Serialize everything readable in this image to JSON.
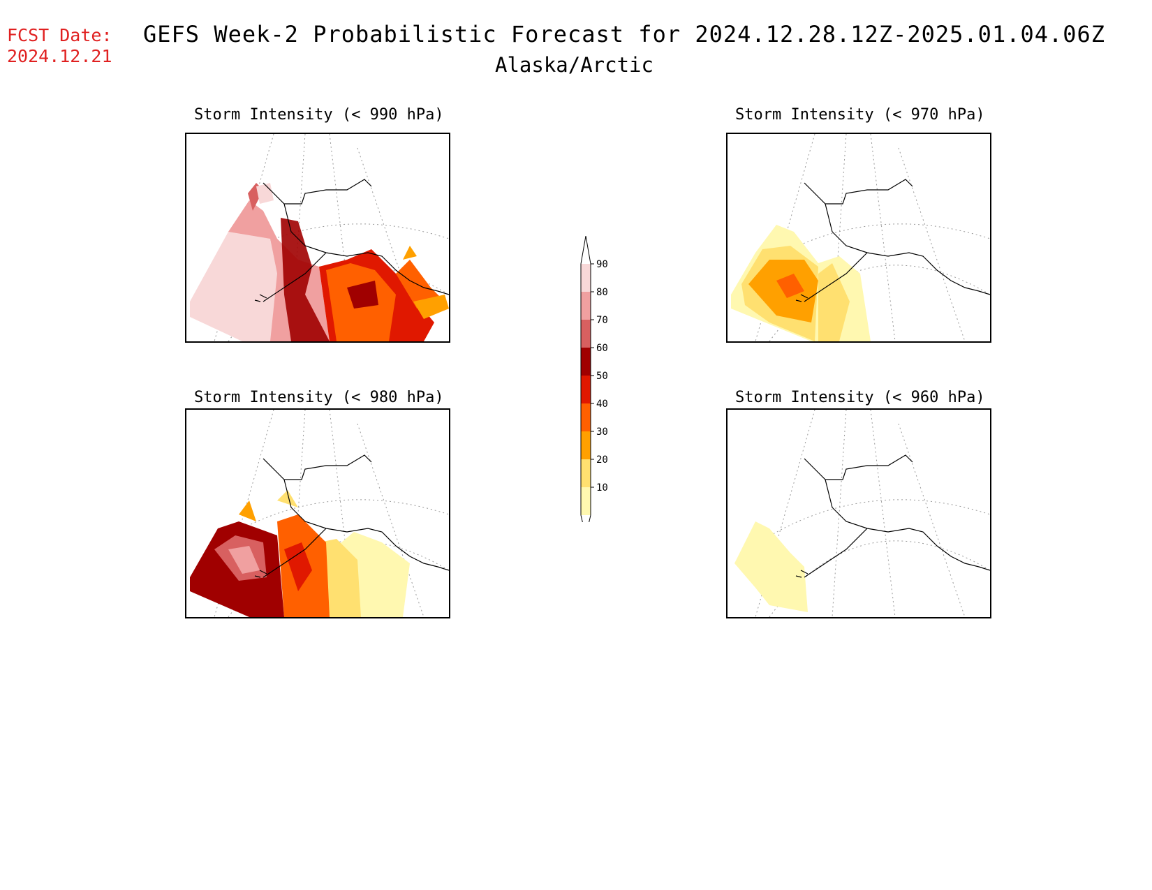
{
  "header": {
    "fcst_label": "FCST Date:",
    "fcst_date": "2024.12.21",
    "title": "GEFS Week-2 Probabilistic Forecast for 2024.12.28.12Z-2025.01.04.06Z",
    "region": "Alaska/Arctic"
  },
  "panels": [
    {
      "title": "Storm Intensity (< 990 hPa)"
    },
    {
      "title": "Storm Intensity (< 970 hPa)"
    },
    {
      "title": "Storm Intensity (< 980 hPa)"
    },
    {
      "title": "Storm Intensity (< 960 hPa)"
    }
  ],
  "colorbar": {
    "levels": [
      {
        "label": "90",
        "color": "#f8d8d8"
      },
      {
        "label": "80",
        "color": "#f0a0a0"
      },
      {
        "label": "70",
        "color": "#d86060"
      },
      {
        "label": "60",
        "color": "#a00000"
      },
      {
        "label": "50",
        "color": "#e01800"
      },
      {
        "label": "40",
        "color": "#ff6000"
      },
      {
        "label": "30",
        "color": "#ffa000"
      },
      {
        "label": "20",
        "color": "#ffe070"
      },
      {
        "label": "10",
        "color": "#fff8b0"
      }
    ]
  }
}
